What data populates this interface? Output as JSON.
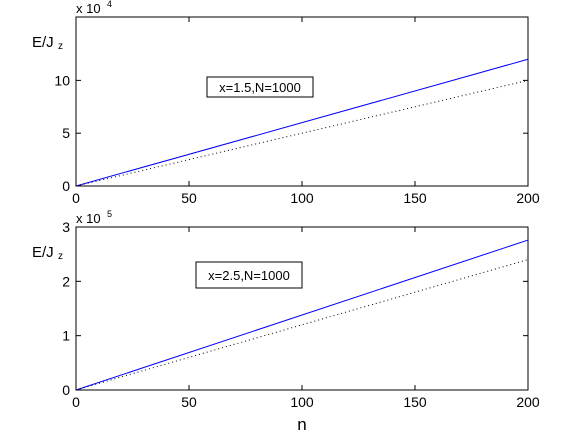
{
  "chart_data": [
    {
      "type": "line",
      "ylabel": {
        "main": "E/J",
        "sub": "z"
      },
      "y_multiplier": {
        "base": "x 10",
        "exp": "4"
      },
      "annotation": "x=1.5,N=1000",
      "x": [
        0,
        200
      ],
      "series": [
        {
          "color": "#0000ff",
          "style": "solid",
          "values": [
            0,
            12
          ]
        },
        {
          "color": "#000000",
          "style": "dotted",
          "values": [
            0,
            10
          ]
        }
      ],
      "xlim": [
        0,
        200
      ],
      "xticks": [
        0,
        50,
        100,
        150,
        200
      ],
      "ylim": [
        0,
        16
      ],
      "yticks": [
        0,
        5,
        10
      ]
    },
    {
      "type": "line",
      "ylabel": {
        "main": "E/J",
        "sub": "z"
      },
      "y_multiplier": {
        "base": "x 10",
        "exp": "5"
      },
      "annotation": "x=2.5,N=1000",
      "xlabel": "n",
      "x": [
        0,
        200
      ],
      "series": [
        {
          "color": "#0000ff",
          "style": "solid",
          "values": [
            0,
            2.76
          ]
        },
        {
          "color": "#000000",
          "style": "dotted",
          "values": [
            0,
            2.4
          ]
        }
      ],
      "xlim": [
        0,
        200
      ],
      "xticks": [
        0,
        50,
        100,
        150,
        200
      ],
      "ylim": [
        0,
        3
      ],
      "yticks": [
        0,
        1,
        2,
        3
      ]
    }
  ]
}
